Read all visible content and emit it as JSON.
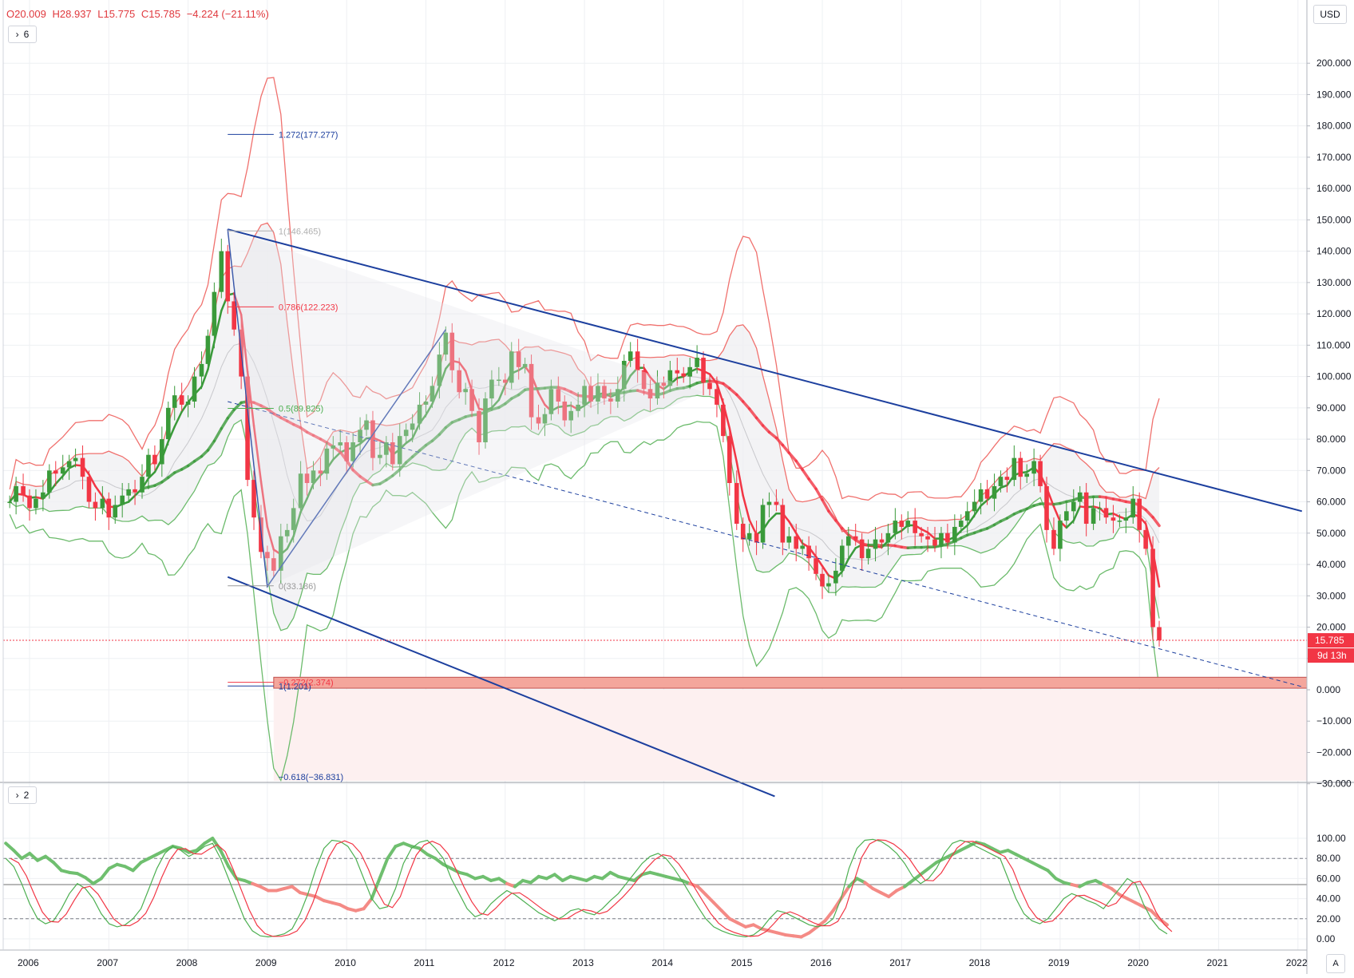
{
  "header": {
    "open": "O20.009",
    "high": "H28.937",
    "low": "L15.775",
    "close": "C15.785",
    "change": "−4.224 (−21.11%)",
    "main_indicators_count": "6",
    "osc_indicators_count": "2"
  },
  "currency_label": "USD",
  "price_tag": "15.785",
  "countdown_tag": "9d 13h",
  "auto_scale_label": "A",
  "colors": {
    "up": "#3a9a3a",
    "down": "#f23645",
    "channel": "#1c3f9e",
    "band_red": "#f0716e",
    "band_green": "#6cbb6c",
    "price_line": "#f23645",
    "zone_fill": "#f4a69c",
    "axis_text": "#131722"
  },
  "chart_data": {
    "type": "candlestick",
    "instrument_currency": "USD",
    "timeframe": "monthly",
    "x_tick_labels": [
      "2006",
      "2007",
      "2008",
      "2009",
      "2010",
      "2011",
      "2012",
      "2013",
      "2014",
      "2015",
      "2016",
      "2017",
      "2018",
      "2019",
      "2020",
      "2021",
      "2022"
    ],
    "y_tick_labels": [
      "200.000",
      "190.000",
      "180.000",
      "170.000",
      "160.000",
      "150.000",
      "140.000",
      "130.000",
      "120.000",
      "110.000",
      "100.000",
      "90.000",
      "80.000",
      "70.000",
      "60.000",
      "50.000",
      "40.000",
      "30.000",
      "20.000",
      "10.000",
      "0.000",
      "−10.000",
      "−20.000",
      "−30.000"
    ],
    "ylim": [
      -34,
      205
    ],
    "last_price": 15.785,
    "candle_closes": [
      [
        2005.75,
        60
      ],
      [
        2005.83,
        65
      ],
      [
        2005.92,
        62
      ],
      [
        2006.0,
        58
      ],
      [
        2006.08,
        61
      ],
      [
        2006.17,
        63
      ],
      [
        2006.25,
        70
      ],
      [
        2006.33,
        69
      ],
      [
        2006.42,
        71
      ],
      [
        2006.5,
        73
      ],
      [
        2006.58,
        74
      ],
      [
        2006.67,
        68
      ],
      [
        2006.75,
        60
      ],
      [
        2006.83,
        58
      ],
      [
        2006.92,
        61
      ],
      [
        2007.0,
        55
      ],
      [
        2007.08,
        59
      ],
      [
        2007.17,
        62
      ],
      [
        2007.25,
        64
      ],
      [
        2007.33,
        63
      ],
      [
        2007.42,
        68
      ],
      [
        2007.5,
        75
      ],
      [
        2007.58,
        72
      ],
      [
        2007.67,
        80
      ],
      [
        2007.75,
        90
      ],
      [
        2007.83,
        94
      ],
      [
        2007.92,
        91
      ],
      [
        2008.0,
        92
      ],
      [
        2008.08,
        100
      ],
      [
        2008.17,
        104
      ],
      [
        2008.25,
        113
      ],
      [
        2008.33,
        127
      ],
      [
        2008.42,
        140
      ],
      [
        2008.5,
        124
      ],
      [
        2008.58,
        115
      ],
      [
        2008.67,
        100
      ],
      [
        2008.75,
        67
      ],
      [
        2008.83,
        55
      ],
      [
        2008.92,
        44
      ],
      [
        2009.0,
        42
      ],
      [
        2009.08,
        38
      ],
      [
        2009.17,
        49
      ],
      [
        2009.25,
        51
      ],
      [
        2009.33,
        58
      ],
      [
        2009.42,
        69
      ],
      [
        2009.5,
        66
      ],
      [
        2009.58,
        70
      ],
      [
        2009.67,
        69
      ],
      [
        2009.75,
        77
      ],
      [
        2009.83,
        78
      ],
      [
        2009.92,
        79
      ],
      [
        2010.0,
        73
      ],
      [
        2010.08,
        79
      ],
      [
        2010.17,
        83
      ],
      [
        2010.25,
        86
      ],
      [
        2010.33,
        74
      ],
      [
        2010.42,
        75
      ],
      [
        2010.5,
        79
      ],
      [
        2010.58,
        72
      ],
      [
        2010.67,
        81
      ],
      [
        2010.75,
        83
      ],
      [
        2010.83,
        85
      ],
      [
        2010.92,
        91
      ],
      [
        2011.0,
        92
      ],
      [
        2011.08,
        97
      ],
      [
        2011.17,
        107
      ],
      [
        2011.25,
        114
      ],
      [
        2011.33,
        102
      ],
      [
        2011.42,
        95
      ],
      [
        2011.5,
        96
      ],
      [
        2011.58,
        89
      ],
      [
        2011.67,
        79
      ],
      [
        2011.75,
        93
      ],
      [
        2011.83,
        99
      ],
      [
        2011.92,
        99
      ],
      [
        2012.0,
        98
      ],
      [
        2012.08,
        108
      ],
      [
        2012.17,
        103
      ],
      [
        2012.25,
        104
      ],
      [
        2012.33,
        87
      ],
      [
        2012.42,
        85
      ],
      [
        2012.5,
        88
      ],
      [
        2012.58,
        96
      ],
      [
        2012.67,
        92
      ],
      [
        2012.75,
        86
      ],
      [
        2012.83,
        89
      ],
      [
        2012.92,
        91
      ],
      [
        2013.0,
        97
      ],
      [
        2013.08,
        92
      ],
      [
        2013.17,
        97
      ],
      [
        2013.25,
        93
      ],
      [
        2013.33,
        92
      ],
      [
        2013.42,
        96
      ],
      [
        2013.5,
        105
      ],
      [
        2013.58,
        108
      ],
      [
        2013.67,
        102
      ],
      [
        2013.75,
        96
      ],
      [
        2013.83,
        93
      ],
      [
        2013.92,
        98
      ],
      [
        2014.0,
        97
      ],
      [
        2014.08,
        102
      ],
      [
        2014.17,
        101
      ],
      [
        2014.25,
        100
      ],
      [
        2014.33,
        103
      ],
      [
        2014.42,
        106
      ],
      [
        2014.5,
        98
      ],
      [
        2014.58,
        96
      ],
      [
        2014.67,
        91
      ],
      [
        2014.75,
        81
      ],
      [
        2014.83,
        66
      ],
      [
        2014.92,
        53
      ],
      [
        2015.0,
        48
      ],
      [
        2015.08,
        50
      ],
      [
        2015.17,
        47
      ],
      [
        2015.25,
        59
      ],
      [
        2015.33,
        60
      ],
      [
        2015.42,
        59
      ],
      [
        2015.5,
        47
      ],
      [
        2015.58,
        49
      ],
      [
        2015.67,
        45
      ],
      [
        2015.75,
        46
      ],
      [
        2015.83,
        42
      ],
      [
        2015.92,
        37
      ],
      [
        2016.0,
        33
      ],
      [
        2016.08,
        34
      ],
      [
        2016.17,
        38
      ],
      [
        2016.25,
        46
      ],
      [
        2016.33,
        49
      ],
      [
        2016.42,
        48
      ],
      [
        2016.5,
        42
      ],
      [
        2016.58,
        45
      ],
      [
        2016.67,
        48
      ],
      [
        2016.75,
        47
      ],
      [
        2016.83,
        50
      ],
      [
        2016.92,
        54
      ],
      [
        2017.0,
        52
      ],
      [
        2017.08,
        54
      ],
      [
        2017.17,
        50
      ],
      [
        2017.25,
        49
      ],
      [
        2017.33,
        48
      ],
      [
        2017.42,
        46
      ],
      [
        2017.5,
        50
      ],
      [
        2017.58,
        47
      ],
      [
        2017.67,
        52
      ],
      [
        2017.75,
        54
      ],
      [
        2017.83,
        57
      ],
      [
        2017.92,
        60
      ],
      [
        2018.0,
        64
      ],
      [
        2018.08,
        61
      ],
      [
        2018.17,
        65
      ],
      [
        2018.25,
        68
      ],
      [
        2018.33,
        67
      ],
      [
        2018.42,
        74
      ],
      [
        2018.5,
        68
      ],
      [
        2018.58,
        69
      ],
      [
        2018.67,
        73
      ],
      [
        2018.75,
        65
      ],
      [
        2018.83,
        51
      ],
      [
        2018.92,
        45
      ],
      [
        2019.0,
        54
      ],
      [
        2019.08,
        57
      ],
      [
        2019.17,
        60
      ],
      [
        2019.25,
        63
      ],
      [
        2019.33,
        53
      ],
      [
        2019.42,
        58
      ],
      [
        2019.5,
        58
      ],
      [
        2019.58,
        55
      ],
      [
        2019.67,
        54
      ],
      [
        2019.75,
        54
      ],
      [
        2019.83,
        55
      ],
      [
        2019.92,
        61
      ],
      [
        2020.0,
        51
      ],
      [
        2020.08,
        45
      ],
      [
        2020.17,
        20
      ],
      [
        2020.25,
        15.785
      ]
    ],
    "overlays": [
      {
        "type": "trend_channel",
        "color": "blue",
        "points": [
          [
            2008.5,
            147
          ],
          [
            2022.05,
            57
          ]
        ]
      },
      {
        "type": "trend_channel",
        "color": "blue",
        "points": [
          [
            2008.5,
            36
          ],
          [
            2015.4,
            -34
          ]
        ]
      },
      {
        "type": "dashed_trendline",
        "color": "blue",
        "points": [
          [
            2008.5,
            92
          ],
          [
            2022.05,
            1
          ]
        ]
      },
      {
        "type": "fib_extension",
        "levels": [
          {
            "label": "1.272(177.277)",
            "value": 177.277
          },
          {
            "label": "1(146.465)",
            "value": 146.465
          },
          {
            "label": "0.786(122.223)",
            "value": 122.223
          },
          {
            "label": "0.5(89.825)",
            "value": 89.825
          },
          {
            "label": "0(33.186)",
            "value": 33.186
          },
          {
            "label": "1(1.201)",
            "value": 1.201
          },
          {
            "label": "−0.272(2.374)",
            "value": 2.374
          },
          {
            "label": "−0.618(−36.831)",
            "value": -36.831
          }
        ]
      },
      {
        "type": "horizontal_zone",
        "from": 0.5,
        "to": 4
      }
    ]
  },
  "oscillator": {
    "type": "stochastic",
    "y_tick_labels": [
      "100.00",
      "80.00",
      "60.00",
      "40.00",
      "20.00",
      "0.00"
    ],
    "ylim": [
      -8,
      108
    ],
    "levels": [
      80,
      54,
      20
    ],
    "series": [
      {
        "name": "",
        "values": [
          95,
          88,
          80,
          85,
          78,
          82,
          76,
          68,
          66,
          65,
          61,
          55,
          60,
          70,
          74,
          72,
          68,
          76,
          80,
          84,
          88,
          92,
          90,
          86,
          88,
          95,
          100,
          88,
          72,
          60,
          58,
          55,
          52,
          48,
          48,
          50,
          52,
          46,
          44,
          42,
          38,
          36,
          34,
          30,
          28,
          30,
          40,
          60,
          80,
          92,
          95,
          92,
          90,
          84,
          80,
          74,
          70,
          66,
          64,
          60,
          62,
          58,
          60,
          55,
          52,
          58,
          56,
          62,
          60,
          64,
          58,
          62,
          60,
          58,
          62,
          60,
          66,
          62,
          60,
          58,
          64,
          66,
          64,
          62,
          60,
          58,
          55,
          52,
          44,
          36,
          28,
          20,
          16,
          12,
          14,
          10,
          8,
          6,
          4,
          3,
          2,
          6,
          12,
          18,
          28,
          40,
          52,
          60,
          56,
          50,
          46,
          42,
          48,
          52,
          58,
          64,
          70,
          76,
          80,
          84,
          88,
          92,
          96,
          94,
          90,
          86,
          88,
          84,
          80,
          76,
          72,
          68,
          60,
          56,
          54,
          52,
          56,
          58,
          54,
          50,
          44,
          40,
          36,
          32,
          28,
          20,
          14
        ]
      },
      {
        "name": "",
        "values": [
          80,
          72,
          55,
          35,
          20,
          15,
          18,
          30,
          45,
          55,
          50,
          40,
          25,
          15,
          12,
          14,
          20,
          30,
          50,
          70,
          85,
          92,
          88,
          82,
          86,
          92,
          95,
          80,
          60,
          40,
          20,
          8,
          3,
          2,
          3,
          5,
          10,
          25,
          45,
          70,
          90,
          98,
          97,
          92,
          80,
          60,
          40,
          30,
          32,
          50,
          75,
          90,
          96,
          98,
          90,
          80,
          60,
          45,
          30,
          22,
          25,
          35,
          42,
          48,
          44,
          38,
          32,
          26,
          22,
          18,
          22,
          28,
          30,
          26,
          24,
          30,
          38,
          45,
          55,
          65,
          75,
          82,
          85,
          80,
          70,
          58,
          45,
          32,
          20,
          12,
          8,
          5,
          3,
          2,
          4,
          10,
          20,
          28,
          26,
          22,
          18,
          14,
          12,
          14,
          20,
          40,
          70,
          90,
          98,
          99,
          97,
          92,
          85,
          75,
          62,
          55,
          60,
          70,
          85,
          95,
          98,
          96,
          92,
          88,
          84,
          80,
          60,
          40,
          25,
          18,
          15,
          20,
          30,
          40,
          45,
          42,
          38,
          35,
          30,
          40,
          50,
          60,
          55,
          35,
          20,
          10,
          5
        ]
      }
    ]
  }
}
